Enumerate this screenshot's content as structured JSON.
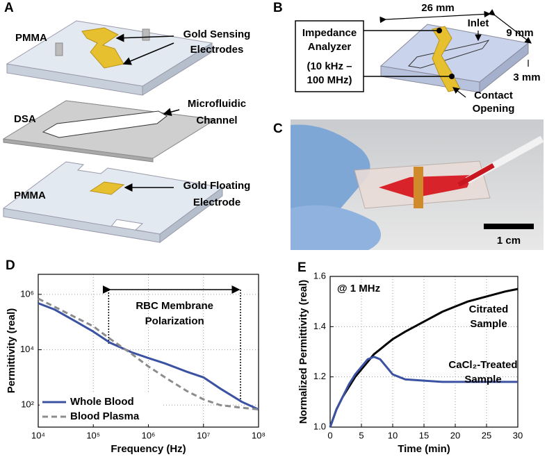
{
  "panel_a": {
    "label": "A",
    "top_layer": "PMMA",
    "electrodes": [
      "Gold Sensing",
      "Electrodes"
    ],
    "middle_layer": "DSA",
    "channel": [
      "Microfluidic",
      "Channel"
    ],
    "bottom_layer": "PMMA",
    "floating": [
      "Gold Floating",
      "Electrode"
    ]
  },
  "panel_b": {
    "label": "B",
    "analyzer": [
      "Impedance",
      "Analyzer",
      "(10 kHz –",
      "100 MHz)"
    ],
    "length": "26 mm",
    "width": "9 mm",
    "height": "3 mm",
    "inlet": "Inlet",
    "contact": [
      "Contact",
      "Opening"
    ]
  },
  "panel_c": {
    "label": "C",
    "scale_bar": "1 cm"
  },
  "chart_data": [
    {
      "type": "line",
      "panel_label": "D",
      "x_label": "Frequency (Hz)",
      "y_label": "Permittivity (real)",
      "xscale": "log",
      "yscale": "log",
      "grid": true,
      "legend": "lower left",
      "xlim": [
        10000,
        100000000
      ],
      "ylim": [
        16,
        5300000
      ],
      "xticks": [
        {
          "value": 10000,
          "label": "10⁴"
        },
        {
          "value": 100000,
          "label": "10⁵"
        },
        {
          "value": 1000000,
          "label": "10⁶"
        },
        {
          "value": 10000000,
          "label": "10⁷"
        },
        {
          "value": 100000000,
          "label": "10⁸"
        }
      ],
      "yticks": [
        {
          "value": 100,
          "label": "10²"
        },
        {
          "value": 10000,
          "label": "10⁴"
        },
        {
          "value": 1000000,
          "label": "10⁶"
        }
      ],
      "annotation": [
        "RBC Membrane",
        "Polarization"
      ],
      "vlines": [
        190000,
        47000000
      ],
      "x": [
        10000,
        20000,
        50000,
        100000,
        200000,
        500000,
        1000000,
        2000000,
        5000000,
        10000000,
        20000000,
        50000000,
        100000000
      ],
      "series": [
        {
          "name": "Whole Blood",
          "color": "#3b52a3",
          "style": "solid",
          "values": [
            480000,
            280000,
            100000,
            45000,
            18000,
            8000,
            5000,
            3200,
            1600,
            1000,
            400,
            130,
            70
          ]
        },
        {
          "name": "Blood Plasma",
          "color": "#8c8c8c",
          "style": "dashed",
          "values": [
            700000,
            350000,
            140000,
            70000,
            25000,
            7000,
            2500,
            1000,
            320,
            160,
            100,
            80,
            70
          ]
        }
      ]
    },
    {
      "type": "line",
      "panel_label": "E",
      "x_label": "Time (min)",
      "y_label": "Normalized Permittivity (real)",
      "grid": true,
      "legend": "inline",
      "annotation": [
        "@ 1 MHz"
      ],
      "xlim": [
        0,
        30
      ],
      "ylim": [
        1,
        1.6
      ],
      "xticks": [
        0,
        5,
        10,
        15,
        20,
        25,
        30
      ],
      "yticks": [
        {
          "value": 1,
          "label": "1.0"
        },
        1.2,
        1.4,
        1.6
      ],
      "x": [
        0,
        1,
        2,
        3,
        4,
        5,
        6,
        7,
        8,
        9,
        10,
        11,
        12,
        15,
        18,
        20,
        22,
        25,
        28,
        30
      ],
      "series": [
        {
          "name": "Citrated Sample",
          "color": "#000000",
          "style": "solid",
          "values": [
            1.0,
            1.07,
            1.12,
            1.16,
            1.2,
            1.23,
            1.26,
            1.29,
            1.31,
            1.33,
            1.35,
            1.365,
            1.38,
            1.42,
            1.46,
            1.48,
            1.5,
            1.52,
            1.54,
            1.55
          ]
        },
        {
          "name": "CaCl₂-Treated Sample",
          "color": "#3b52a3",
          "style": "solid",
          "values": [
            1.0,
            1.07,
            1.12,
            1.17,
            1.21,
            1.24,
            1.27,
            1.28,
            1.27,
            1.24,
            1.21,
            1.2,
            1.19,
            1.185,
            1.18,
            1.18,
            1.18,
            1.18,
            1.18,
            1.18
          ]
        }
      ]
    }
  ]
}
